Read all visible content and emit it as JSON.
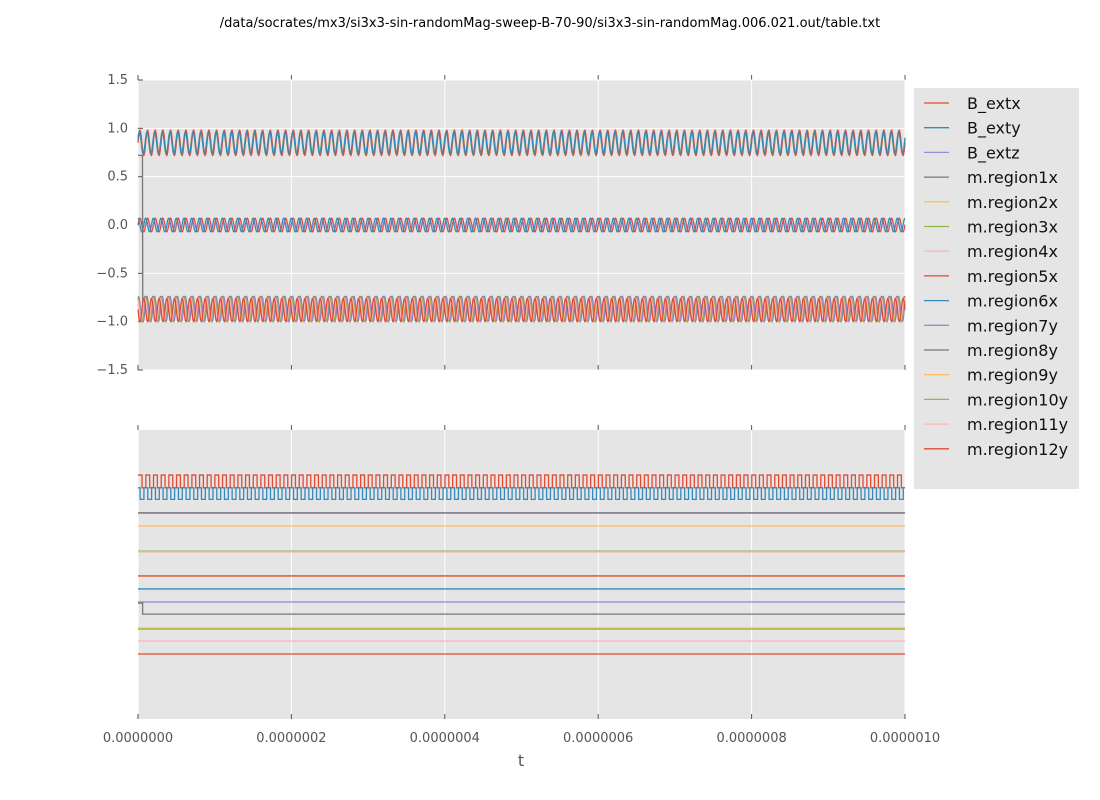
{
  "chart_data": [
    {
      "type": "line",
      "title": "/data/socrates/mx3/si3x3-sin-randomMag-sweep-B-70-90/si3x3-sin-randomMag.006.021.out/table.txt",
      "xlabel": "",
      "ylabel": "",
      "xlim": [
        0,
        1e-06
      ],
      "ylim": [
        -1.5,
        1.5
      ],
      "yticks": [
        "1.5",
        "1.0",
        "0.5",
        "0.0",
        "−0.5",
        "−1.0",
        "−1.5"
      ],
      "ytick_values": [
        1.5,
        1.0,
        0.5,
        0.0,
        -0.5,
        -1.0,
        -1.5
      ],
      "grid": true,
      "legend_placement": "outside-right",
      "series_form": "oscillating, approximately mean + amplitude*sin(2*pi*frequency*t + phase)",
      "series": [
        {
          "name": "B_extx",
          "color": "#e24a33",
          "mean": 0.0,
          "amplitude": 0.07,
          "frequency_hz": 100000000,
          "phase": 0
        },
        {
          "name": "B_exty",
          "color": "#348abd",
          "mean": 0.0,
          "amplitude": 0.07,
          "frequency_hz": 100000000,
          "phase": 1.57
        },
        {
          "name": "B_extz",
          "color": "#988ed5",
          "mean": 0.0,
          "amplitude": 0.0,
          "frequency_hz": 100000000,
          "phase": 0
        },
        {
          "name": "m.region1x",
          "color": "#777777",
          "mean": -0.87,
          "amplitude": 0.13,
          "frequency_hz": 100000000,
          "phase": 0.6,
          "initial_value": 0.72,
          "switch_time": 6e-09
        },
        {
          "name": "m.region2x",
          "color": "#fbc15e",
          "mean": 0.85,
          "amplitude": 0.12,
          "frequency_hz": 100000000,
          "phase": 0.3
        },
        {
          "name": "m.region3x",
          "color": "#8eba42",
          "mean": 0.85,
          "amplitude": 0.12,
          "frequency_hz": 100000000,
          "phase": 0.5
        },
        {
          "name": "m.region4x",
          "color": "#ffb5b8",
          "mean": 0.86,
          "amplitude": 0.12,
          "frequency_hz": 100000000,
          "phase": 0.2
        },
        {
          "name": "m.region5x",
          "color": "#e24a33",
          "mean": 0.85,
          "amplitude": 0.13,
          "frequency_hz": 100000000,
          "phase": 0
        },
        {
          "name": "m.region6x",
          "color": "#348abd",
          "mean": 0.85,
          "amplitude": 0.11,
          "frequency_hz": 100000000,
          "phase": 0.4
        },
        {
          "name": "m.region7y",
          "color": "#988ed5",
          "mean": -0.87,
          "amplitude": 0.13,
          "frequency_hz": 100000000,
          "phase": 1.0
        },
        {
          "name": "m.region8y",
          "color": "#777777",
          "mean": -0.86,
          "amplitude": 0.12,
          "frequency_hz": 100000000,
          "phase": 2.0
        },
        {
          "name": "m.region9y",
          "color": "#fbc15e",
          "mean": -0.88,
          "amplitude": 0.12,
          "frequency_hz": 100000000,
          "phase": 2.6
        },
        {
          "name": "m.region10y",
          "color": "#8eba42",
          "mean": -0.87,
          "amplitude": 0.12,
          "frequency_hz": 100000000,
          "phase": 1.8
        },
        {
          "name": "m.region11y",
          "color": "#ffb5b8",
          "mean": -0.87,
          "amplitude": 0.11,
          "frequency_hz": 100000000,
          "phase": 2.2
        },
        {
          "name": "m.region12y",
          "color": "#e24a33",
          "mean": -0.88,
          "amplitude": 0.12,
          "frequency_hz": 100000000,
          "phase": 3.1
        }
      ]
    },
    {
      "type": "line",
      "xlabel": "t",
      "ylabel": "",
      "xlim": [
        0,
        1e-06
      ],
      "ylim": [
        0,
        1
      ],
      "yticks": [],
      "xticks": [
        "0.0000000",
        "0.0000002",
        "0.0000004",
        "0.0000006",
        "0.0000008",
        "0.0000010"
      ],
      "xtick_values": [
        0,
        2e-07,
        4e-07,
        6e-07,
        8e-07,
        1e-06
      ],
      "grid": true,
      "series_form": "digital traces: square wave between low and high, or constant level",
      "series": [
        {
          "name": "B_extx",
          "color": "#e24a33",
          "low": 0.8,
          "high": 0.844,
          "frequency_hz": 100000000,
          "phase": 0
        },
        {
          "name": "B_exty",
          "color": "#348abd",
          "low": 0.76,
          "high": 0.8,
          "frequency_hz": 100000000,
          "phase": 1.57
        },
        {
          "name": "B_extz",
          "color": "#988ed5",
          "level": 0.713
        },
        {
          "name": "m.region1x",
          "color": "#777777",
          "level": 0.713
        },
        {
          "name": "m.region2x",
          "color": "#fbc15e",
          "level": 0.668
        },
        {
          "name": "m.region3x",
          "color": "#8eba42",
          "level": 0.581
        },
        {
          "name": "m.region4x",
          "color": "#ffb5b8",
          "level": 0.578
        },
        {
          "name": "m.region5x",
          "color": "#e24a33",
          "level": 0.495
        },
        {
          "name": "m.region6x",
          "color": "#348abd",
          "level": 0.45
        },
        {
          "name": "m.region7y",
          "color": "#988ed5",
          "level": 0.405
        },
        {
          "name": "m.region8y",
          "color": "#777777",
          "level": 0.363,
          "initial_value": 0.401,
          "switch_time": 6e-09
        },
        {
          "name": "m.region9y",
          "color": "#fbc15e",
          "level": 0.315
        },
        {
          "name": "m.region10y",
          "color": "#8eba42",
          "level": 0.311
        },
        {
          "name": "m.region11y",
          "color": "#ffb5b8",
          "level": 0.27
        },
        {
          "name": "m.region12y",
          "color": "#e24a33",
          "level": 0.225
        }
      ]
    }
  ],
  "colors": {
    "axes_background": "#e5e5e5",
    "grid": "#ffffff",
    "legend_background": "#e5e5e5"
  }
}
